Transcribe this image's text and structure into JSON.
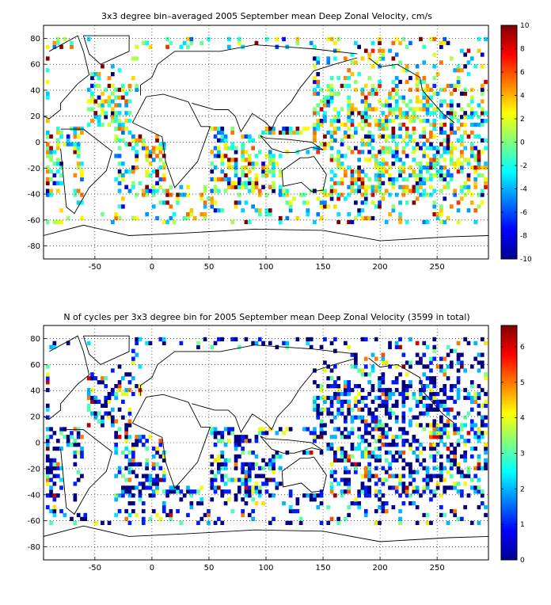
{
  "chart_data": [
    {
      "type": "heatmap",
      "title": "3x3 degree bin–averaged 2005 September mean Deep Zonal Velocity, cm/s",
      "xlabel": "",
      "ylabel": "",
      "x_ticks": [
        "-50",
        "0",
        "50",
        "100",
        "150",
        "200",
        "250"
      ],
      "y_ticks": [
        "80",
        "60",
        "40",
        "20",
        "0",
        "-20",
        "-40",
        "-60",
        "-80"
      ],
      "xlim": [
        -95,
        295
      ],
      "ylim": [
        -90,
        90
      ],
      "colorbar": {
        "min": -10,
        "max": 10,
        "ticks": [
          "10",
          "8",
          "6",
          "4",
          "2",
          "0",
          "-2",
          "-4",
          "-6",
          "-8",
          "-10"
        ]
      },
      "colormap": "jet",
      "grid": "dotted"
    },
    {
      "type": "heatmap",
      "title": "N of cycles per 3x3 degree bin for 2005 September mean Deep Zonal Velocity (3599 in total)",
      "xlabel": "",
      "ylabel": "",
      "x_ticks": [
        "-50",
        "0",
        "50",
        "100",
        "150",
        "200",
        "250"
      ],
      "y_ticks": [
        "80",
        "60",
        "40",
        "20",
        "0",
        "-20",
        "-40",
        "-60",
        "-80"
      ],
      "xlim": [
        -95,
        295
      ],
      "ylim": [
        -90,
        90
      ],
      "colorbar": {
        "min": 0,
        "max": 6.6,
        "ticks": [
          "6",
          "5",
          "4",
          "3",
          "2",
          "1",
          "0"
        ]
      },
      "colormap": "jet",
      "grid": "dotted"
    }
  ]
}
